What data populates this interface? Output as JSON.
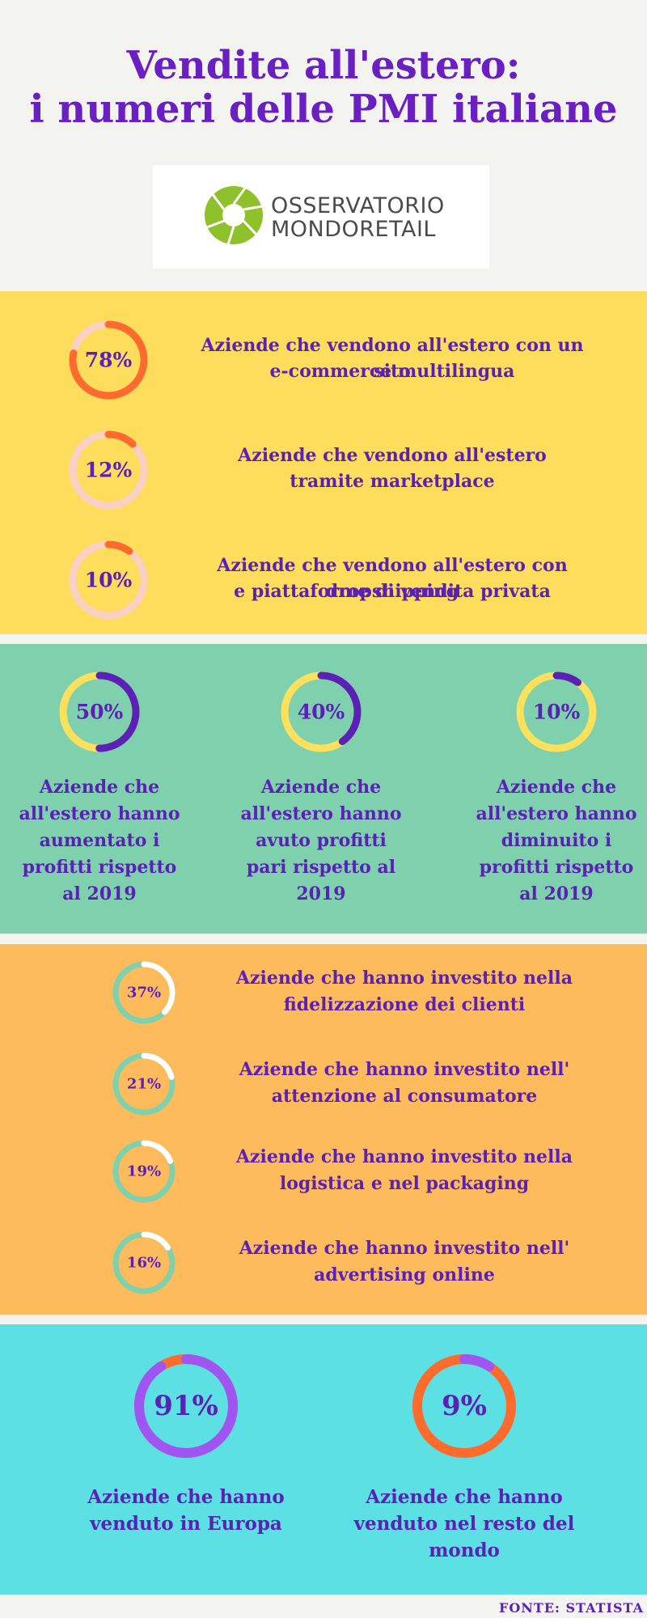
{
  "header": {
    "title_line1": "Vendite all'estero:",
    "title_line2": "i numeri delle PMI italiane"
  },
  "logo": {
    "line1": "OSSERVATORIO",
    "line2": "MONDORETAIL",
    "icon": "aperture-icon"
  },
  "section1": {
    "items": [
      {
        "value": 78,
        "label": "78%",
        "text_line1": "Aziende che vendono all'estero con un sito",
        "text_line2": "e-commerce multilingua"
      },
      {
        "value": 12,
        "label": "12%",
        "text_line1": "Aziende che vendono all'estero",
        "text_line2": "tramite marketplace"
      },
      {
        "value": 10,
        "label": "10%",
        "text_line1": "Aziende che vendono all'estero con dropshipping",
        "text_line2": "e piattaforme di vendita privata"
      }
    ],
    "colors": {
      "arc": "#fe6b2c",
      "track": "#fbd0c4",
      "background": "#fedd5c"
    }
  },
  "section2": {
    "items": [
      {
        "value": 50,
        "label": "50%",
        "text_lines": [
          "Aziende che",
          "all'estero hanno",
          "aumentato i",
          "profitti rispetto",
          "al 2019"
        ]
      },
      {
        "value": 40,
        "label": "40%",
        "text_lines": [
          "Aziende che",
          "all'estero hanno",
          "avuto profitti",
          "pari rispetto al",
          "2019"
        ]
      },
      {
        "value": 10,
        "label": "10%",
        "text_lines": [
          "Aziende che",
          "all'estero hanno",
          "diminuito i",
          "profitti rispetto",
          "al 2019"
        ]
      }
    ],
    "colors": {
      "arc": "#5b21b6",
      "track": "#fde05c",
      "background": "#7fd1ad"
    }
  },
  "section3": {
    "items": [
      {
        "value": 37,
        "label": "37%",
        "text_line1": "Aziende che hanno investito nella",
        "text_line2": "fidelizzazione dei clienti"
      },
      {
        "value": 21,
        "label": "21%",
        "text_line1": "Aziende che hanno investito nell'",
        "text_line2": "attenzione al consumatore"
      },
      {
        "value": 19,
        "label": "19%",
        "text_line1": "Aziende che hanno investito nella",
        "text_line2": "logistica e nel packaging"
      },
      {
        "value": 16,
        "label": "16%",
        "text_line1": "Aziende che hanno investito nell'",
        "text_line2": "advertising online"
      }
    ],
    "colors": {
      "arc": "#ffffff",
      "track": "#7fd1ad",
      "background": "#fdbb5c"
    }
  },
  "section4": {
    "items": [
      {
        "value": 91,
        "label": "91%",
        "text_line1": "Aziende che hanno",
        "text_line2": "venduto in Europa",
        "arc_color": "#a055f2",
        "track_color": "#fe6b2c"
      },
      {
        "value": 9,
        "label": "9%",
        "text_line1": "Aziende che hanno",
        "text_line2": "venduto nel resto del mondo",
        "arc_color": "#a055f2",
        "track_color": "#fe6b2c"
      }
    ],
    "colors": {
      "background": "#5ce0e4"
    }
  },
  "footer": {
    "source": "FONTE: STATISTA"
  }
}
